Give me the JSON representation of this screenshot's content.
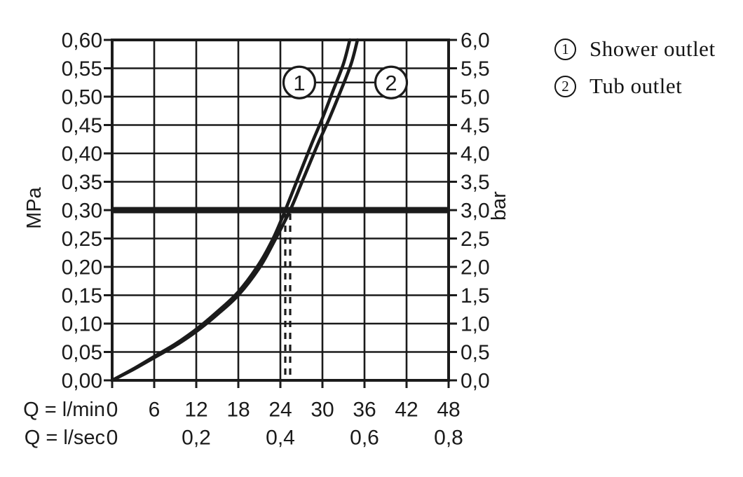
{
  "colors": {
    "ink": "#1b1b1b",
    "background": "#ffffff"
  },
  "legend": {
    "items": [
      {
        "number": "1",
        "label": "Shower outlet"
      },
      {
        "number": "2",
        "label": "Tub outlet"
      }
    ]
  },
  "chart_data": {
    "type": "line",
    "title": "",
    "grid": "on",
    "left_axis": {
      "unit": "MPa",
      "min": 0,
      "max": 0.6,
      "step": 0.05,
      "tick_labels": [
        "0,60",
        "0,55",
        "0,50",
        "0,45",
        "0,40",
        "0,35",
        "0,30",
        "0,25",
        "0,20",
        "0,15",
        "0,10",
        "0,05",
        "0,00"
      ]
    },
    "right_axis": {
      "unit": "bar",
      "min": 0,
      "max": 6.0,
      "step": 0.5,
      "tick_labels": [
        "6,0",
        "5,5",
        "5,0",
        "4,5",
        "4,0",
        "3,5",
        "3,0",
        "2,5",
        "2,0",
        "1,5",
        "1,0",
        "0,5",
        "0,0"
      ]
    },
    "x_axis_lmin": {
      "label": "Q = l/min",
      "min": 0,
      "max": 48,
      "tick_labels": [
        "0",
        "6",
        "12",
        "18",
        "24",
        "30",
        "36",
        "42",
        "48"
      ],
      "tick_values": [
        0,
        6,
        12,
        18,
        24,
        30,
        36,
        42,
        48
      ]
    },
    "x_axis_lsec": {
      "label": "Q = l/sec",
      "ticks": [
        {
          "label": "0",
          "at_lmin": 0
        },
        {
          "label": "0,2",
          "at_lmin": 12
        },
        {
          "label": "0,4",
          "at_lmin": 24
        },
        {
          "label": "0,6",
          "at_lmin": 36
        },
        {
          "label": "0,8",
          "at_lmin": 48
        }
      ]
    },
    "series": [
      {
        "name": "Shower outlet",
        "marker": "1",
        "points_lmin_mpa": [
          [
            0,
            0
          ],
          [
            3,
            0.02
          ],
          [
            6,
            0.042
          ],
          [
            9,
            0.064
          ],
          [
            12,
            0.09
          ],
          [
            15,
            0.121
          ],
          [
            18,
            0.156
          ],
          [
            21,
            0.206
          ],
          [
            23,
            0.251
          ],
          [
            24.7,
            0.3
          ],
          [
            26.5,
            0.356
          ],
          [
            28.5,
            0.418
          ],
          [
            30,
            0.462
          ],
          [
            31.5,
            0.51
          ],
          [
            33,
            0.558
          ],
          [
            33.9,
            0.6
          ]
        ]
      },
      {
        "name": "Tub outlet",
        "marker": "2",
        "points_lmin_mpa": [
          [
            0,
            0
          ],
          [
            3,
            0.019
          ],
          [
            6,
            0.04
          ],
          [
            9,
            0.061
          ],
          [
            12,
            0.086
          ],
          [
            15,
            0.116
          ],
          [
            18,
            0.15
          ],
          [
            21,
            0.198
          ],
          [
            23,
            0.242
          ],
          [
            25.4,
            0.3
          ],
          [
            27.3,
            0.356
          ],
          [
            29.4,
            0.418
          ],
          [
            31,
            0.462
          ],
          [
            32.6,
            0.51
          ],
          [
            34.1,
            0.558
          ],
          [
            35.0,
            0.6
          ]
        ]
      }
    ],
    "reference_line": {
      "mpa": 0.3,
      "bar": 3.0
    },
    "dashed_lines_lmin": [
      24.7,
      25.4
    ],
    "markers": [
      {
        "label": "1",
        "series": "Shower outlet",
        "center_lmin": 26.7,
        "center_mpa": 0.525
      },
      {
        "label": "2",
        "series": "Tub outlet",
        "center_lmin": 39.8,
        "center_mpa": 0.525
      }
    ]
  }
}
